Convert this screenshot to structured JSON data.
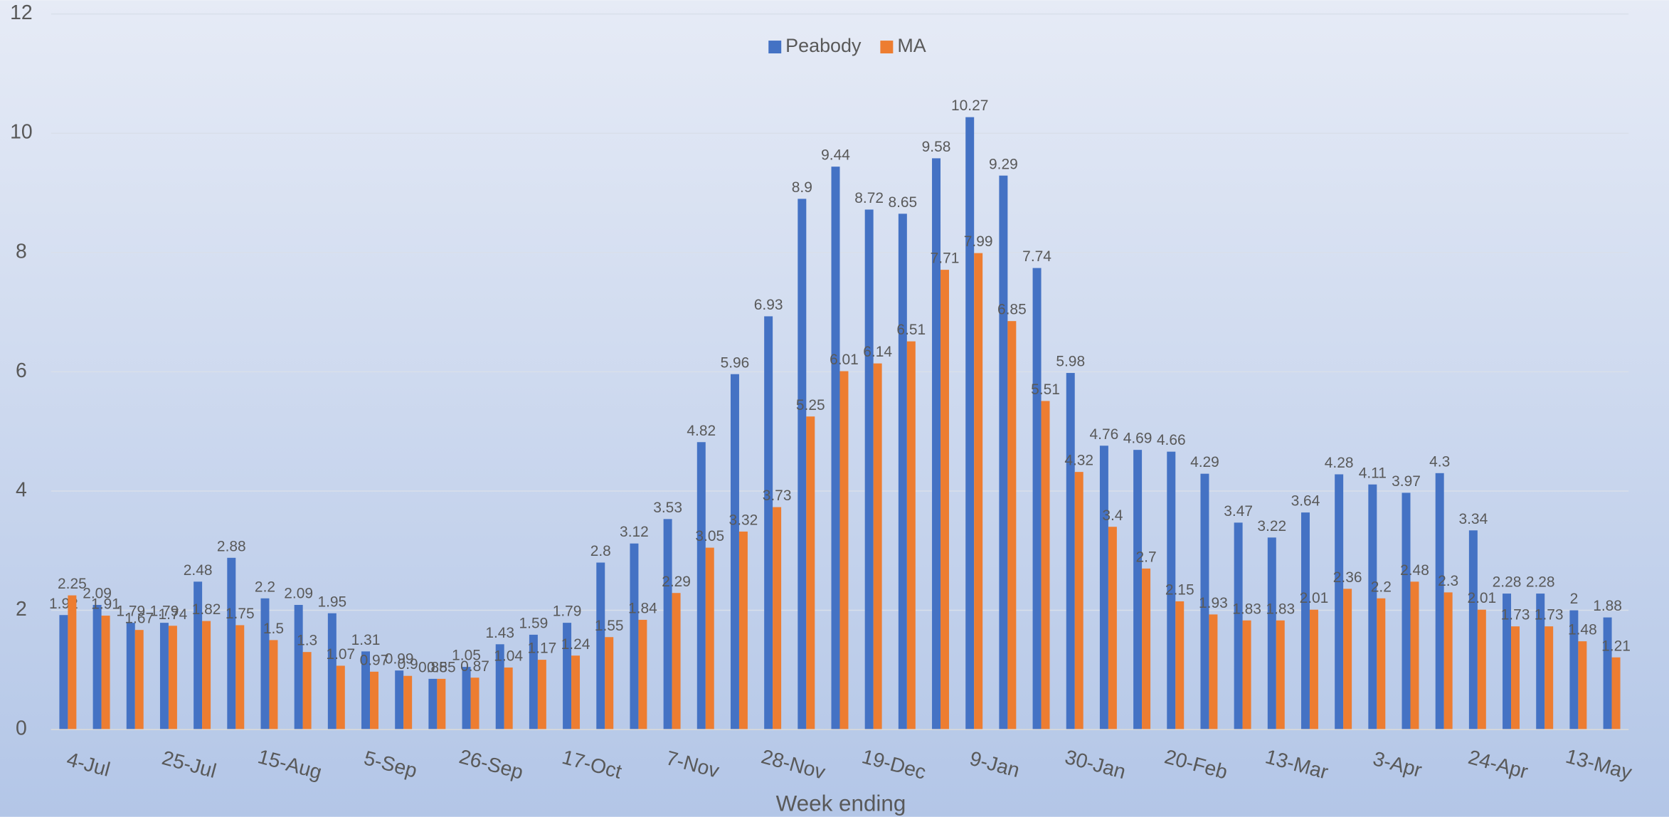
{
  "chart_data": {
    "type": "bar",
    "x_label": "Week ending",
    "categories": [
      "4-Jul",
      null,
      null,
      "25-Jul",
      null,
      null,
      "15-Aug",
      null,
      null,
      "5-Sep",
      null,
      null,
      "26-Sep",
      null,
      null,
      "17-Oct",
      null,
      null,
      "7-Nov",
      null,
      null,
      "28-Nov",
      null,
      null,
      "19-Dec",
      null,
      null,
      "9-Jan",
      null,
      null,
      "30-Jan",
      null,
      null,
      "20-Feb",
      null,
      null,
      "13-Mar",
      null,
      null,
      "3-Apr",
      null,
      null,
      "24-Apr",
      null,
      null,
      "13-May",
      null
    ],
    "series": [
      {
        "name": "Peabody",
        "color": "#4472c4",
        "values": [
          1.92,
          2.09,
          1.79,
          1.79,
          2.48,
          2.88,
          2.2,
          2.09,
          1.95,
          1.31,
          0.99,
          0.85,
          1.05,
          1.43,
          1.59,
          1.79,
          2.8,
          3.12,
          3.53,
          4.82,
          5.96,
          6.93,
          8.9,
          9.44,
          8.72,
          8.65,
          9.58,
          10.27,
          9.29,
          7.74,
          5.98,
          4.76,
          4.69,
          4.66,
          4.29,
          3.47,
          3.22,
          3.64,
          4.28,
          4.11,
          3.97,
          4.3,
          3.34,
          2.28,
          2.28,
          2,
          1.88
        ]
      },
      {
        "name": "MA",
        "color": "#ed7d31",
        "values": [
          2.25,
          1.91,
          1.67,
          1.74,
          1.82,
          1.75,
          1.5,
          1.3,
          1.07,
          0.97,
          0.9,
          0.85,
          0.87,
          1.04,
          1.17,
          1.24,
          1.55,
          1.84,
          2.29,
          3.05,
          3.32,
          3.73,
          5.25,
          6.01,
          6.14,
          6.51,
          7.71,
          7.99,
          6.85,
          5.51,
          4.32,
          3.4,
          2.7,
          2.15,
          1.93,
          1.83,
          1.83,
          2.01,
          2.36,
          2.2,
          2.48,
          2.3,
          2.01,
          1.73,
          1.73,
          1.48,
          1.21
        ]
      }
    ],
    "ylim": [
      0,
      12
    ],
    "yticks": [
      0,
      2,
      4,
      6,
      8,
      10,
      12
    ],
    "grid": true,
    "legend": "top"
  }
}
